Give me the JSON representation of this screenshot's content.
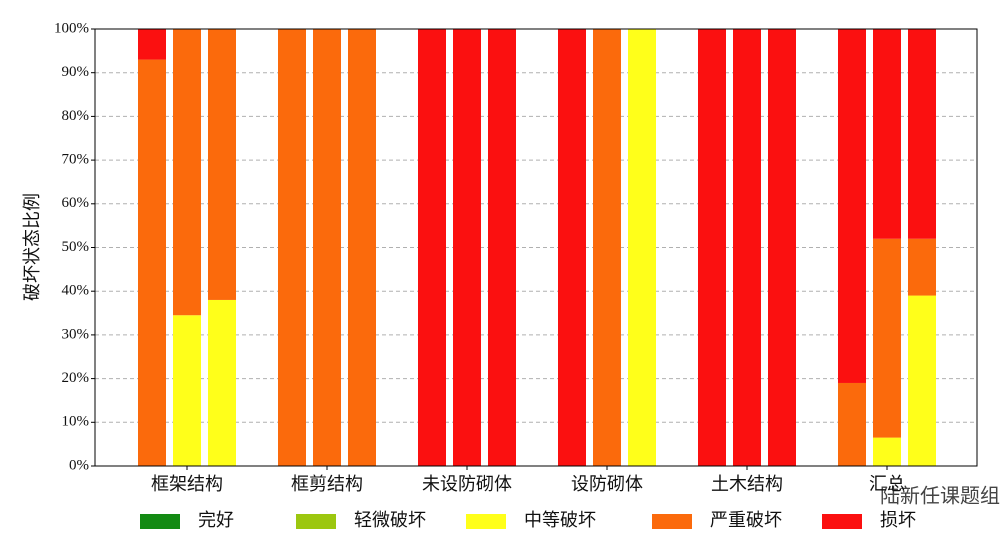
{
  "chart_data": {
    "type": "stacked_bar",
    "y_label": "破坏状态比例",
    "categories": [
      null,
      "框架结构",
      null,
      null,
      "框剪结构",
      null,
      null,
      "未设防砌体",
      null,
      null,
      "设防砌体",
      null,
      null,
      "土木结构",
      null,
      null,
      "汇总",
      null
    ],
    "series": [
      {
        "name": "完好",
        "color": "#138a13",
        "values": [
          0,
          0,
          0,
          0,
          0,
          0,
          0,
          0,
          0,
          0,
          0,
          0,
          0,
          0,
          0,
          0,
          0,
          0
        ]
      },
      {
        "name": "轻微破坏",
        "color": "#9cc70f",
        "values": [
          0,
          0,
          0,
          0,
          0,
          0,
          0,
          0,
          0,
          0,
          0,
          0,
          0,
          0,
          0,
          0,
          0,
          0
        ]
      },
      {
        "name": "中等破坏",
        "color": "#ffff1a",
        "values": [
          0,
          34.5,
          38,
          0,
          0,
          0,
          0,
          0,
          0,
          0,
          0,
          100,
          0,
          0,
          0,
          0,
          6.5,
          39
        ]
      },
      {
        "name": "严重破坏",
        "color": "#fb6a0c",
        "values": [
          93,
          65.5,
          62,
          100,
          100,
          100,
          0,
          0,
          0,
          0,
          100,
          0,
          0,
          0,
          0,
          19,
          45.5,
          13
        ]
      },
      {
        "name": "损坏",
        "color": "#fb1010",
        "values": [
          7,
          0,
          0,
          0,
          0,
          0,
          100,
          100,
          100,
          100,
          0,
          0,
          100,
          100,
          100,
          81,
          48,
          48
        ]
      }
    ],
    "ylim": [
      0,
      100
    ],
    "yticks": [
      {
        "value": 0,
        "label": "0%"
      },
      {
        "value": 10,
        "label": "10%"
      },
      {
        "value": 20,
        "label": "20%"
      },
      {
        "value": 30,
        "label": "30%"
      },
      {
        "value": 40,
        "label": "40%"
      },
      {
        "value": 50,
        "label": "50%"
      },
      {
        "value": 60,
        "label": "60%"
      },
      {
        "value": 70,
        "label": "70%"
      },
      {
        "value": 80,
        "label": "80%"
      },
      {
        "value": 90,
        "label": "90%"
      },
      {
        "value": 100,
        "label": "100%"
      }
    ],
    "grid": true,
    "legend": "bottom",
    "watermark": "陆新任课题组"
  }
}
